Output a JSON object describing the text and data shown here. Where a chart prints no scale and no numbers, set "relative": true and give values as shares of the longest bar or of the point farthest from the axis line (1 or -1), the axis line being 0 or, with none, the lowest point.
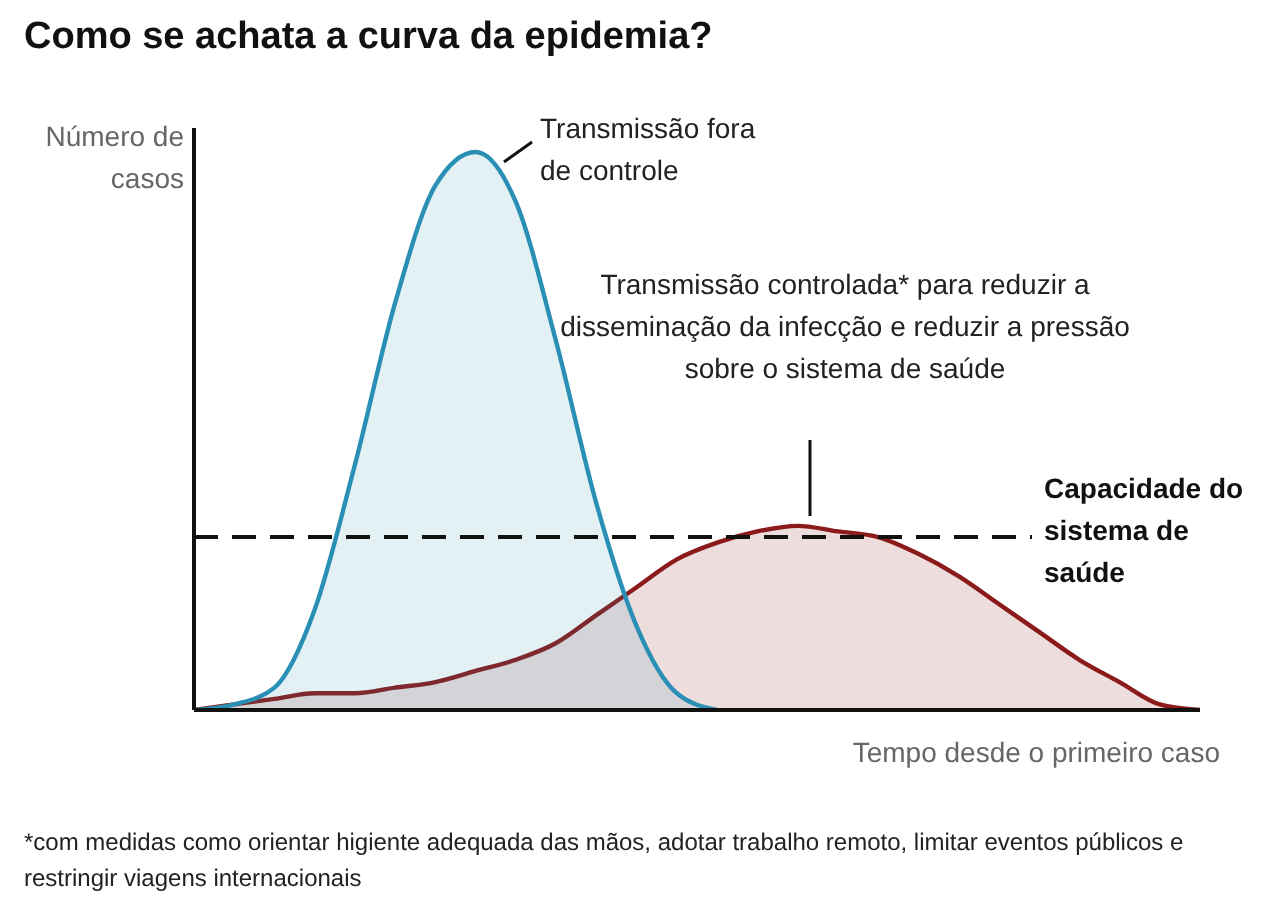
{
  "chart_data": {
    "type": "area",
    "title": "Como se achata a curva da epidemia?",
    "ylabel": "Número de casos",
    "xlabel": "Tempo desde o primeiro caso",
    "relative": true,
    "categories": [
      null,
      null,
      null,
      null,
      null,
      null,
      null,
      null,
      null,
      null,
      null,
      null,
      null,
      null,
      null,
      null,
      null,
      null,
      null,
      null,
      null,
      null,
      null,
      null,
      null,
      null
    ],
    "series": [
      {
        "color": "#8b1a1a",
        "values": [
          0,
          0.01,
          0.02,
          0.03,
          0.03,
          0.04,
          0.05,
          0.07,
          0.09,
          0.12,
          0.17,
          0.22,
          0.27,
          0.3,
          0.32,
          0.33,
          0.32,
          0.31,
          0.28,
          0.24,
          0.19,
          0.14,
          0.09,
          0.05,
          0.01,
          0
        ]
      },
      {
        "color": "#2a8fb5",
        "values": [
          0,
          0.01,
          0.04,
          0.18,
          0.44,
          0.73,
          0.94,
          1,
          0.91,
          0.66,
          0.37,
          0.15,
          0.03,
          0,
          null,
          null,
          null,
          null,
          null,
          null,
          null,
          null,
          null,
          null,
          null,
          null
        ]
      }
    ],
    "ref_lines": [
      {
        "axis": "y",
        "value": 0.31,
        "label": "Capacidade do sistema de saúde",
        "color": "#111111",
        "line_style": "dashed"
      }
    ],
    "annotations": [
      "Transmissão fora de controle",
      "Transmissão controlada* para reduzir a disseminação da infecção e reduzir a pressão sobre o sistema de saúde",
      "*com medidas como orientar higiente adequada das mãos, adotar trabalho remoto, limitar eventos públicos e restringir viagens internacionais"
    ]
  }
}
